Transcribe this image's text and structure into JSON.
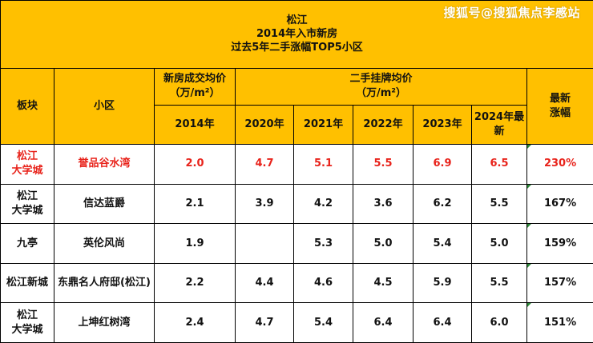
{
  "watermark": "搜狐号@搜狐焦点李慼站",
  "title": {
    "line1": "松江",
    "line2": "2014年入市新房",
    "line3": "过去5年二手涨幅TOP5小区"
  },
  "headers": {
    "block": "板块",
    "community": "小区",
    "new_price": "新房成交均价\n（万/m²）",
    "resale_price": "二手挂牌均价\n（万/m²）",
    "growth": "最新\n涨幅",
    "years": [
      "2014年",
      "2020年",
      "2021年",
      "2022年",
      "2023年",
      "2024年最\n新"
    ]
  },
  "rows": [
    {
      "block": "松江\n大学城",
      "name": "誉品谷水湾",
      "p2014": "2.0",
      "p2020": "4.7",
      "p2021": "5.1",
      "p2022": "5.5",
      "p2023": "6.9",
      "p2024": "6.5",
      "growth": "230%",
      "highlight": true
    },
    {
      "block": "松江\n大学城",
      "name": "信达蓝爵",
      "p2014": "2.1",
      "p2020": "3.9",
      "p2021": "4.2",
      "p2022": "3.6",
      "p2023": "6.2",
      "p2024": "5.5",
      "growth": "167%",
      "highlight": false
    },
    {
      "block": "九亭",
      "name": "英伦风尚",
      "p2014": "1.9",
      "p2020": "",
      "p2021": "5.3",
      "p2022": "5.0",
      "p2023": "5.4",
      "p2024": "5.0",
      "growth": "159%",
      "highlight": false
    },
    {
      "block": "松江新城",
      "name": "东鼎名人府邸(松江)",
      "p2014": "2.2",
      "p2020": "4.4",
      "p2021": "4.6",
      "p2022": "4.5",
      "p2023": "5.9",
      "p2024": "5.5",
      "growth": "157%",
      "highlight": false
    },
    {
      "block": "松江\n大学城",
      "name": "上坤红树湾",
      "p2014": "2.4",
      "p2020": "4.7",
      "p2021": "5.4",
      "p2022": "6.4",
      "p2023": "6.4",
      "p2024": "6.0",
      "growth": "151%",
      "highlight": false
    }
  ],
  "colors": {
    "header_bg": "#FFC000",
    "highlight_text": "#E8231B",
    "border": "#000000"
  }
}
